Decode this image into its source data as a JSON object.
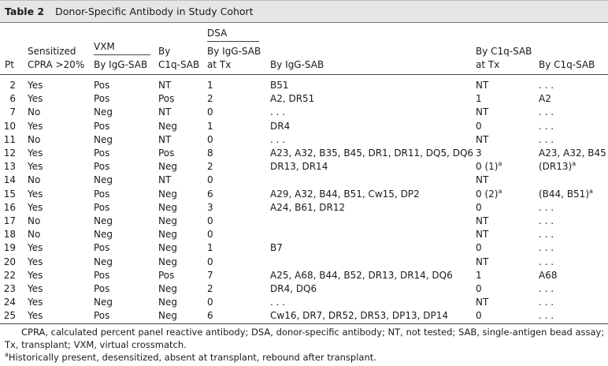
{
  "title": {
    "label": "Table 2",
    "text": "Donor-Specific Antibody in Study Cohort"
  },
  "headers": {
    "pt": "Pt",
    "sensitized_top": "Sensitized",
    "sensitized_bottom": "CPRA >20%",
    "vxm_group": "VXM",
    "vxm_igg": "By IgG-SAB",
    "vxm_c1q_top": "By",
    "vxm_c1q_bottom": "C1q-SAB",
    "dsa_group": "DSA",
    "dsa_igg_tx_top": "By IgG-SAB",
    "dsa_igg_tx_bottom": "at Tx",
    "dsa_igg": "By IgG-SAB",
    "dsa_c1q_tx_top": "By C1q-SAB",
    "dsa_c1q_tx_bottom": "at Tx",
    "dsa_c1q": "By C1q-SAB"
  },
  "rows": [
    [
      "2",
      "Yes",
      "Pos",
      "NT",
      "1",
      "B51",
      "NT",
      "",
      ". . ."
    ],
    [
      "6",
      "Yes",
      "Pos",
      "Pos",
      "2",
      "A2, DR51",
      "1",
      "",
      "A2"
    ],
    [
      "7",
      "No",
      "Neg",
      "NT",
      "0",
      ". . .",
      "NT",
      "",
      ". . ."
    ],
    [
      "10",
      "Yes",
      "Pos",
      "Neg",
      "1",
      "DR4",
      "0",
      "",
      ". . ."
    ],
    [
      "11",
      "No",
      "Neg",
      "NT",
      "0",
      ". . .",
      "NT",
      "",
      ". . ."
    ],
    [
      "12",
      "Yes",
      "Pos",
      "Pos",
      "8",
      "A23, A32, B35, B45, DR1, DR11, DQ5, DQ6",
      "3",
      "",
      "A23, A32, B45"
    ],
    [
      "13",
      "Yes",
      "Pos",
      "Neg",
      "2",
      "DR13, DR14",
      "0 (1)",
      "a",
      "(DR13)"
    ],
    [
      "14",
      "No",
      "Neg",
      "NT",
      "0",
      "",
      "NT",
      "",
      ""
    ],
    [
      "15",
      "Yes",
      "Pos",
      "Neg",
      "6",
      "A29, A32, B44, B51, Cw15, DP2",
      "0 (2)",
      "a",
      "(B44, B51)"
    ],
    [
      "16",
      "Yes",
      "Pos",
      "Neg",
      "3",
      "A24, B61, DR12",
      "0",
      "",
      ". . ."
    ],
    [
      "17",
      "No",
      "Neg",
      "Neg",
      "0",
      "",
      "NT",
      "",
      ". . ."
    ],
    [
      "18",
      "No",
      "Neg",
      "Neg",
      "0",
      "",
      "NT",
      "",
      ". . ."
    ],
    [
      "19",
      "Yes",
      "Pos",
      "Neg",
      "1",
      "B7",
      "0",
      "",
      ". . ."
    ],
    [
      "20",
      "Yes",
      "Neg",
      "Neg",
      "0",
      "",
      "NT",
      "",
      ". . ."
    ],
    [
      "22",
      "Yes",
      "Pos",
      "Pos",
      "7",
      "A25, A68, B44, B52, DR13, DR14, DQ6",
      "1",
      "",
      "A68"
    ],
    [
      "23",
      "Yes",
      "Pos",
      "Neg",
      "2",
      "DR4, DQ6",
      "0",
      "",
      ". . ."
    ],
    [
      "24",
      "Yes",
      "Neg",
      "Neg",
      "0",
      ". . .",
      "NT",
      "",
      ". . ."
    ],
    [
      "25",
      "Yes",
      "Pos",
      "Neg",
      "6",
      "Cw16, DR7, DR52, DR53, DP13, DP14",
      "0",
      "",
      ". . ."
    ]
  ],
  "c1q_sup": {
    "13": "a",
    "15": "a"
  },
  "footnotes": {
    "abbrev": "CPRA, calculated percent panel reactive antibody; DSA, donor-specific antibody; NT, not tested; SAB, single-antigen bead assay; Tx, transplant; VXM, virtual crossmatch.",
    "a_mark": "a",
    "a_text": "Historically present, desensitized, absent at transplant, rebound after transplant."
  }
}
